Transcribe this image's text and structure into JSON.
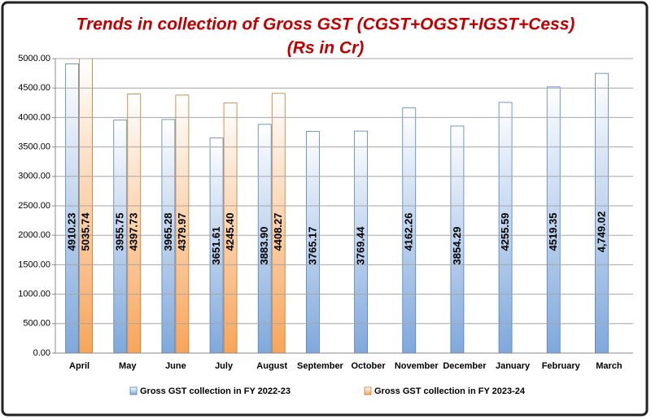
{
  "chart_data": {
    "type": "bar",
    "title": "Trends in collection of Gross GST (CGST+OGST+IGST+Cess)",
    "subtitle": "(Rs in Cr)",
    "categories": [
      "April",
      "May",
      "June",
      "July",
      "August",
      "September",
      "October",
      "November",
      "December",
      "January",
      "February",
      "March"
    ],
    "series": [
      {
        "name": "Gross GST collection in FY 2022-23",
        "color": "#7fa8dc",
        "values": [
          4910.23,
          3955.75,
          3965.28,
          3651.61,
          3883.9,
          3765.17,
          3769.44,
          4162.26,
          3854.29,
          4255.59,
          4519.35,
          4749.02
        ],
        "value_labels": [
          "4910.23",
          "3955.75",
          "3965.28",
          "3651.61",
          "3883.90",
          "3765.17",
          "3769.44",
          "4162.26",
          "3854.29",
          "4255.59",
          "4519.35",
          "4,749.02"
        ]
      },
      {
        "name": "Gross GST collection in FY 2023-24",
        "color": "#f8a55a",
        "values": [
          5035.74,
          4397.73,
          4379.97,
          4245.4,
          4408.27,
          null,
          null,
          null,
          null,
          null,
          null,
          null
        ],
        "value_labels": [
          "5035.74",
          "4397.73",
          "4379.97",
          "4245.40",
          "4408.27",
          null,
          null,
          null,
          null,
          null,
          null,
          null
        ]
      }
    ],
    "ylim": [
      0,
      5000
    ],
    "yticks": [
      {
        "value": 0,
        "label": "0.00"
      },
      {
        "value": 500,
        "label": "500.00"
      },
      {
        "value": 1000,
        "label": "1000.00"
      },
      {
        "value": 1500,
        "label": "1500.00"
      },
      {
        "value": 2000,
        "label": "2000.00"
      },
      {
        "value": 2500,
        "label": "2500.00"
      },
      {
        "value": 3000,
        "label": "3000.00"
      },
      {
        "value": 3500,
        "label": "3500.00"
      },
      {
        "value": 4000,
        "label": "4000.00"
      },
      {
        "value": 4500,
        "label": "4500.00"
      },
      {
        "value": 5000,
        "label": "5000.00"
      }
    ],
    "grid": true,
    "legend": "bottom"
  }
}
